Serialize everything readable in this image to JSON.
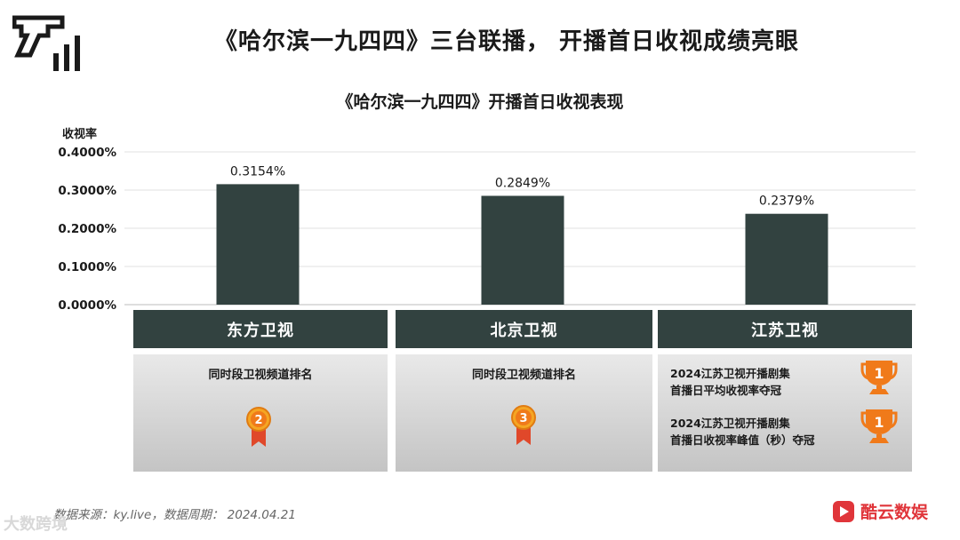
{
  "header": {
    "title": "《哈尔滨一九四四》三台联播， 开播首日收视成绩亮眼"
  },
  "chart_data": {
    "type": "bar",
    "title": "《哈尔滨一九四四》开播首日收视表现",
    "ylabel": "收视率",
    "xlabel": "",
    "categories": [
      "东方卫视",
      "北京卫视",
      "江苏卫视"
    ],
    "values": [
      0.3154,
      0.2849,
      0.2379
    ],
    "value_labels": [
      "0.3154%",
      "0.2849%",
      "0.2379%"
    ],
    "ylim": [
      0,
      0.4
    ],
    "yticks": [
      {
        "value": 0.4,
        "label": "0.4000%"
      },
      {
        "value": 0.3,
        "label": "0.3000%"
      },
      {
        "value": 0.2,
        "label": "0.2000%"
      },
      {
        "value": 0.1,
        "label": "0.1000%"
      },
      {
        "value": 0.0,
        "label": "0.0000%"
      }
    ],
    "grid": true,
    "bar_color": "#324240"
  },
  "panels": [
    {
      "text": "同时段卫视频道排名",
      "medal_rank": "2"
    },
    {
      "text": "同时段卫视频道排名",
      "medal_rank": "3"
    },
    {
      "awards": [
        {
          "line1": "2024江苏卫视开播剧集",
          "line2": "首播日平均收视率夺冠",
          "rank": "1"
        },
        {
          "line1": "2024江苏卫视开播剧集",
          "line2": "首播日收视率峰值（秒）夺冠",
          "rank": "1"
        }
      ]
    }
  ],
  "footer": {
    "source": "数据来源：ky.live，数据周期： 2024.04.21",
    "brand": "酷云数娱",
    "watermark": "大数跨境"
  },
  "colors": {
    "dark_teal": "#324240",
    "orange": "#f07a1a",
    "brand_red": "#e0353a"
  }
}
